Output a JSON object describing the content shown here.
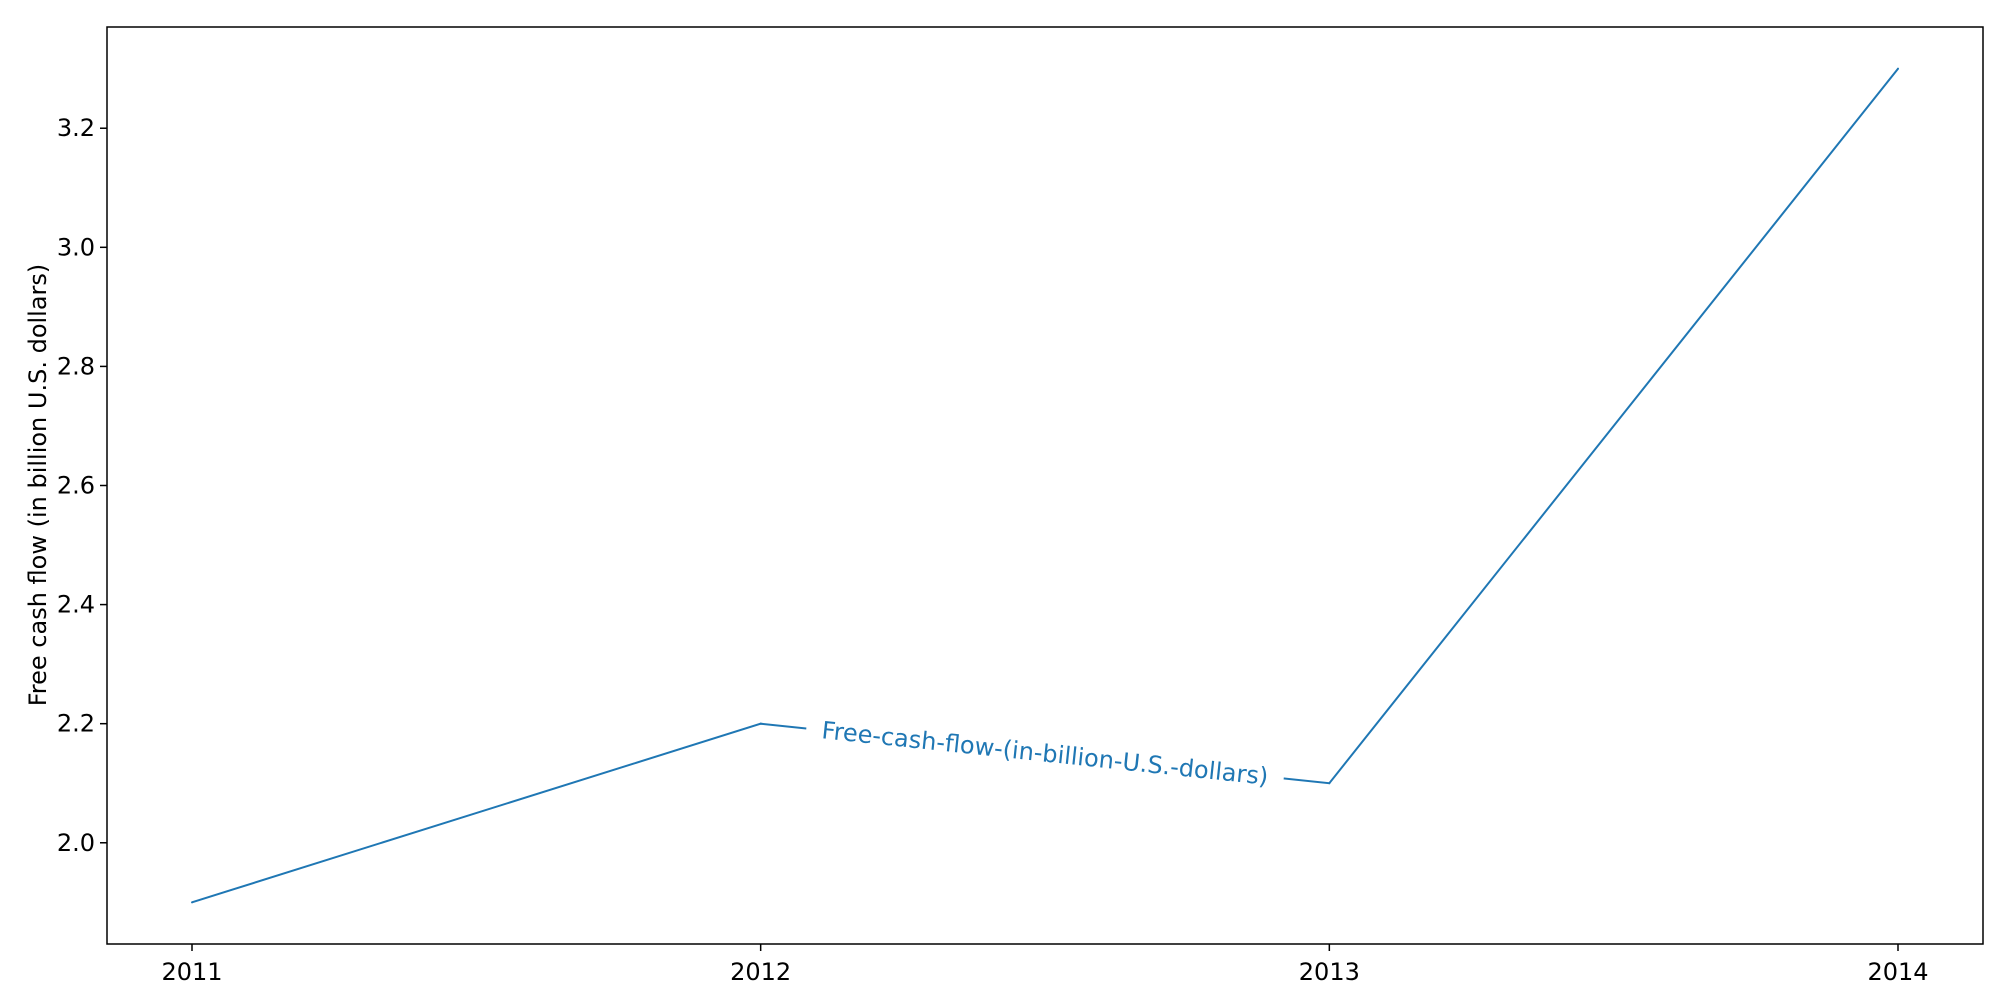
{
  "chart_data": {
    "type": "line",
    "title": "",
    "xlabel": "",
    "ylabel": "Free cash flow (in billion U.S. dollars)",
    "x": [
      "2011",
      "2012",
      "2013",
      "2014"
    ],
    "series": [
      {
        "name": "Free-cash-flow-(in-billion-U.S.-dollars)",
        "values": [
          1.9,
          2.2,
          2.1,
          3.3
        ],
        "color": "#1f77b4"
      }
    ],
    "ylim": [
      1.83,
      3.37
    ],
    "yticks": [
      "2.0",
      "2.2",
      "2.4",
      "2.6",
      "2.8",
      "3.0",
      "3.2"
    ],
    "grid": false,
    "legend": "none"
  }
}
